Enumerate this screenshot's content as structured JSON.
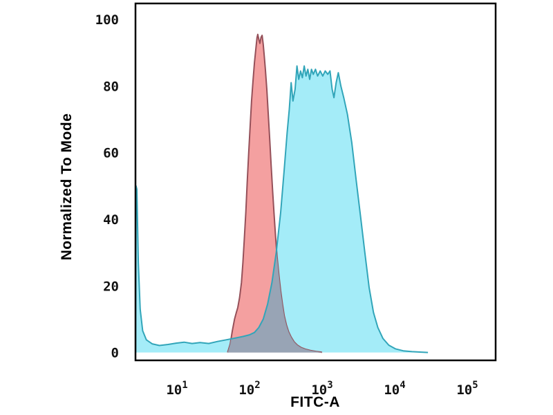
{
  "chart_data": {
    "type": "area",
    "title": "",
    "xlabel": "FITC-A",
    "ylabel": "Normalized To Mode",
    "x_scale": "log10",
    "xlim_log": [
      0.392,
      5.352
    ],
    "ylim": [
      0,
      100
    ],
    "y_ticks": [
      0,
      20,
      40,
      60,
      80,
      100
    ],
    "x_tick_base": "10",
    "x_tick_exponents": [
      1,
      2,
      3,
      4,
      5
    ],
    "grid": false,
    "legend": null,
    "frame_color": "#000000",
    "overlap_fill": "#8FA4B6",
    "series": [
      {
        "name": "red",
        "fill": "#F4A0A0",
        "stroke": "#955059",
        "points": [
          [
            1.66,
            0
          ],
          [
            1.695,
            2.5
          ],
          [
            1.725,
            6.5
          ],
          [
            1.755,
            10
          ],
          [
            1.78,
            12
          ],
          [
            1.8,
            13.5
          ],
          [
            1.825,
            16.5
          ],
          [
            1.85,
            21
          ],
          [
            1.87,
            27
          ],
          [
            1.89,
            34
          ],
          [
            1.91,
            42
          ],
          [
            1.93,
            51
          ],
          [
            1.95,
            60
          ],
          [
            1.97,
            68
          ],
          [
            1.99,
            75.5
          ],
          [
            2.01,
            81.5
          ],
          [
            2.03,
            87
          ],
          [
            2.05,
            91.5
          ],
          [
            2.065,
            94.5
          ],
          [
            2.075,
            95.5
          ],
          [
            2.09,
            94
          ],
          [
            2.105,
            92.8
          ],
          [
            2.12,
            94.6
          ],
          [
            2.135,
            95.2
          ],
          [
            2.15,
            92.5
          ],
          [
            2.165,
            89
          ],
          [
            2.18,
            85
          ],
          [
            2.2,
            79
          ],
          [
            2.22,
            71.5
          ],
          [
            2.24,
            64
          ],
          [
            2.26,
            56
          ],
          [
            2.28,
            48.5
          ],
          [
            2.3,
            41.5
          ],
          [
            2.32,
            35
          ],
          [
            2.34,
            29
          ],
          [
            2.365,
            23.5
          ],
          [
            2.39,
            18.5
          ],
          [
            2.415,
            14.5
          ],
          [
            2.44,
            11
          ],
          [
            2.47,
            8.2
          ],
          [
            2.5,
            6.2
          ],
          [
            2.535,
            4.6
          ],
          [
            2.575,
            3.2
          ],
          [
            2.62,
            2.2
          ],
          [
            2.67,
            1.5
          ],
          [
            2.73,
            1.0
          ],
          [
            2.8,
            0.6
          ],
          [
            2.88,
            0.3
          ],
          [
            2.95,
            0.1
          ],
          [
            2.96,
            0
          ]
        ]
      },
      {
        "name": "cyan",
        "fill": "#A4ECF8",
        "stroke": "#31A5B9",
        "points": [
          [
            0.392,
            0
          ],
          [
            0.398,
            50
          ],
          [
            0.41,
            49
          ],
          [
            0.43,
            27
          ],
          [
            0.455,
            13
          ],
          [
            0.49,
            6.5
          ],
          [
            0.54,
            3.8
          ],
          [
            0.62,
            2.6
          ],
          [
            0.72,
            2.1
          ],
          [
            0.84,
            2.4
          ],
          [
            0.95,
            2.8
          ],
          [
            1.06,
            3.1
          ],
          [
            1.17,
            2.7
          ],
          [
            1.28,
            3.0
          ],
          [
            1.4,
            2.7
          ],
          [
            1.52,
            3.3
          ],
          [
            1.64,
            3.8
          ],
          [
            1.76,
            4.3
          ],
          [
            1.87,
            4.8
          ],
          [
            1.96,
            5.3
          ],
          [
            2.03,
            6.0
          ],
          [
            2.09,
            7.5
          ],
          [
            2.15,
            10
          ],
          [
            2.21,
            14.5
          ],
          [
            2.27,
            21
          ],
          [
            2.33,
            30
          ],
          [
            2.39,
            42
          ],
          [
            2.44,
            55
          ],
          [
            2.48,
            66
          ],
          [
            2.51,
            73
          ],
          [
            2.535,
            81
          ],
          [
            2.56,
            75.5
          ],
          [
            2.59,
            79
          ],
          [
            2.615,
            86
          ],
          [
            2.64,
            82
          ],
          [
            2.665,
            84.5
          ],
          [
            2.69,
            82.5
          ],
          [
            2.715,
            86
          ],
          [
            2.74,
            83
          ],
          [
            2.765,
            85
          ],
          [
            2.79,
            82
          ],
          [
            2.815,
            85
          ],
          [
            2.84,
            83.5
          ],
          [
            2.87,
            85
          ],
          [
            2.9,
            83
          ],
          [
            2.935,
            84.5
          ],
          [
            2.97,
            83
          ],
          [
            3.005,
            84.5
          ],
          [
            3.04,
            83.5
          ],
          [
            3.07,
            84.5
          ],
          [
            3.1,
            79
          ],
          [
            3.125,
            76.5
          ],
          [
            3.155,
            81
          ],
          [
            3.185,
            84
          ],
          [
            3.22,
            80
          ],
          [
            3.26,
            76.5
          ],
          [
            3.31,
            71.5
          ],
          [
            3.37,
            63
          ],
          [
            3.43,
            52
          ],
          [
            3.49,
            41
          ],
          [
            3.55,
            30
          ],
          [
            3.61,
            19.5
          ],
          [
            3.67,
            12
          ],
          [
            3.73,
            7.5
          ],
          [
            3.8,
            4.2
          ],
          [
            3.88,
            2.2
          ],
          [
            3.97,
            1.1
          ],
          [
            4.08,
            0.5
          ],
          [
            4.2,
            0.25
          ],
          [
            4.33,
            0.1
          ],
          [
            4.42,
            0
          ]
        ]
      }
    ]
  }
}
